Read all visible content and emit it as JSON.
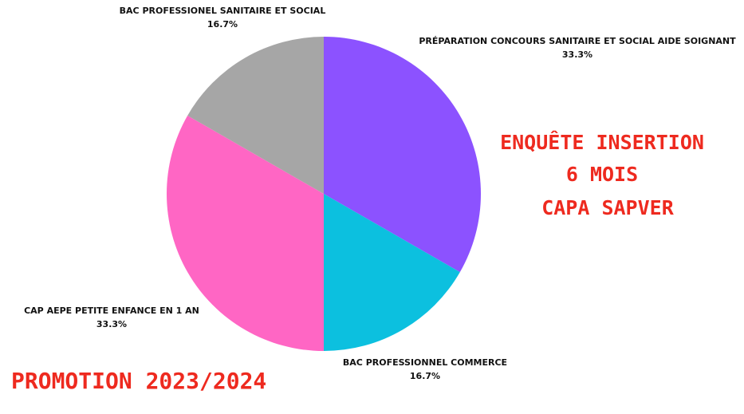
{
  "chart_data": {
    "type": "pie",
    "categories": [
      "PRÉPARATION CONCOURS SANITAIRE ET SOCIAL AIDE SOIGNANT",
      "BAC PROFESSIONNEL COMMERCE",
      "CAP AEPE PETITE ENFANCE EN 1 AN",
      "BAC PROFESSIONEL SANITAIRE ET SOCIAL"
    ],
    "values": [
      33.3,
      16.7,
      33.3,
      16.7
    ],
    "value_labels": [
      "33.3%",
      "16.7%",
      "33.3%",
      "16.7%"
    ],
    "colors": [
      "#8c52ff",
      "#0cc0df",
      "#ff66c4",
      "#a6a6a6"
    ],
    "annotations": [
      "ENQUÊTE INSERTION",
      "6 MOIS",
      "CAPA SAPVER",
      "PROMOTION 2023/2024"
    ]
  }
}
